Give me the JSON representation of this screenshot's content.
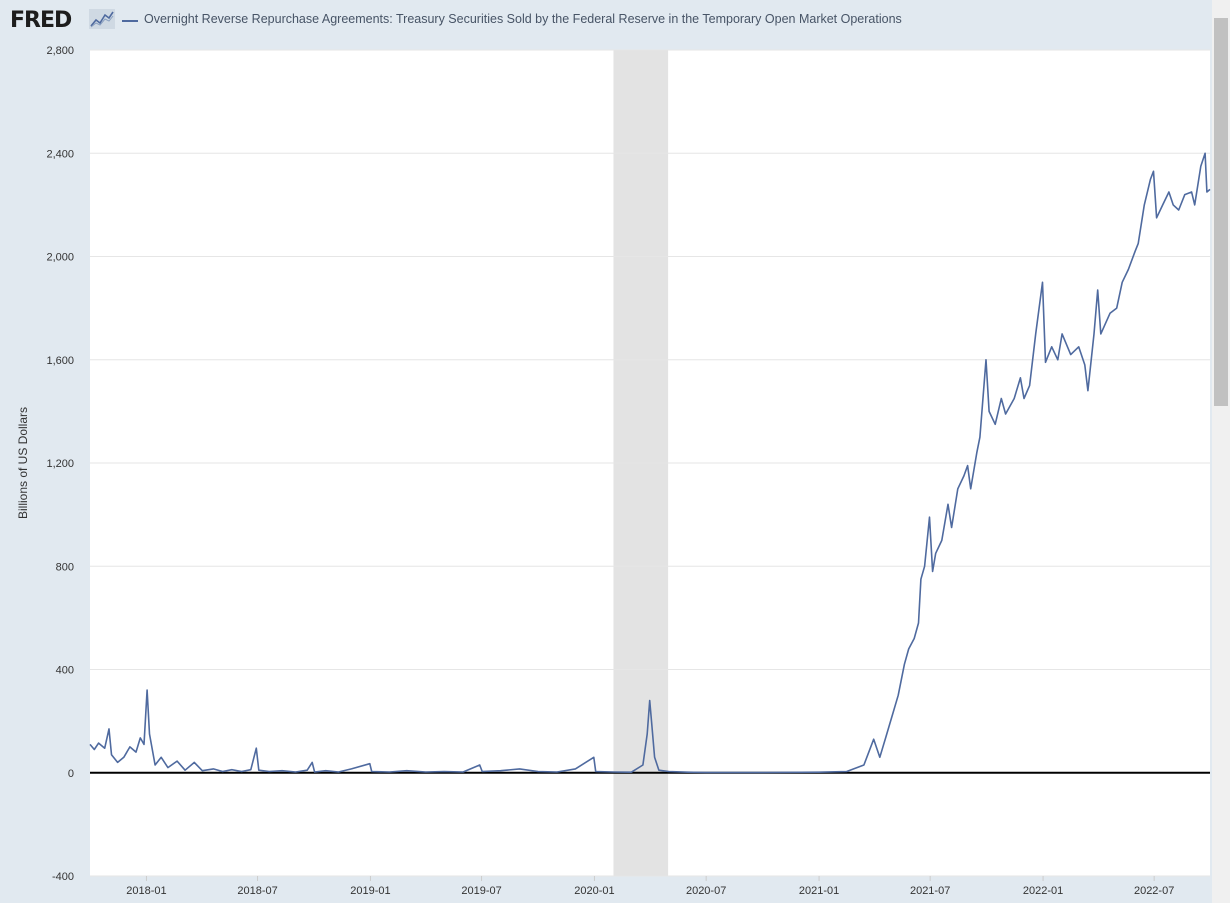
{
  "header": {
    "logo_text": "FRED",
    "series_title": "Overnight Reverse Repurchase Agreements: Treasury Securities Sold by the Federal Reserve in the Temporary Open Market Operations"
  },
  "colors": {
    "series": "#4f6a9f",
    "recession": "#e3e3e3",
    "background": "#e1e9f0",
    "plot": "#ffffff",
    "zero_line": "#000000"
  },
  "chart_data": {
    "type": "line",
    "title": "Overnight Reverse Repurchase Agreements: Treasury Securities Sold by the Federal Reserve in the Temporary Open Market Operations",
    "xlabel": "",
    "ylabel": "Billions of US Dollars",
    "ylim": [
      -400,
      2800
    ],
    "xlim": [
      "2017-10-01",
      "2022-09-30"
    ],
    "yticks": [
      -400,
      0,
      400,
      800,
      1200,
      1600,
      2000,
      2400,
      2800
    ],
    "ytick_labels": [
      "-400",
      "0",
      "400",
      "800",
      "1,200",
      "1,600",
      "2,000",
      "2,400",
      "2,800"
    ],
    "xticks": [
      "2018-01",
      "2018-07",
      "2019-01",
      "2019-07",
      "2020-01",
      "2020-07",
      "2021-01",
      "2021-07",
      "2022-01",
      "2022-07"
    ],
    "grid": true,
    "recession_shading": [
      {
        "start": "2020-02-01",
        "end": "2020-04-30"
      }
    ],
    "series": [
      {
        "name": "Overnight Reverse Repurchase Agreements: Treasury Securities Sold by the Federal Reserve in the Temporary Open Market Operations",
        "points": [
          [
            "2017-10-01",
            110
          ],
          [
            "2017-10-08",
            90
          ],
          [
            "2017-10-15",
            115
          ],
          [
            "2017-10-25",
            95
          ],
          [
            "2017-11-01",
            170
          ],
          [
            "2017-11-05",
            70
          ],
          [
            "2017-11-15",
            40
          ],
          [
            "2017-11-25",
            60
          ],
          [
            "2017-12-05",
            100
          ],
          [
            "2017-12-15",
            80
          ],
          [
            "2017-12-22",
            135
          ],
          [
            "2017-12-28",
            110
          ],
          [
            "2018-01-02",
            320
          ],
          [
            "2018-01-06",
            150
          ],
          [
            "2018-01-15",
            30
          ],
          [
            "2018-01-25",
            60
          ],
          [
            "2018-02-05",
            20
          ],
          [
            "2018-02-20",
            45
          ],
          [
            "2018-03-05",
            10
          ],
          [
            "2018-03-20",
            40
          ],
          [
            "2018-04-02",
            8
          ],
          [
            "2018-04-20",
            15
          ],
          [
            "2018-05-05",
            5
          ],
          [
            "2018-05-20",
            12
          ],
          [
            "2018-06-05",
            5
          ],
          [
            "2018-06-20",
            12
          ],
          [
            "2018-06-29",
            95
          ],
          [
            "2018-07-03",
            10
          ],
          [
            "2018-07-20",
            5
          ],
          [
            "2018-08-10",
            8
          ],
          [
            "2018-09-01",
            3
          ],
          [
            "2018-09-20",
            10
          ],
          [
            "2018-09-28",
            40
          ],
          [
            "2018-10-02",
            3
          ],
          [
            "2018-10-20",
            8
          ],
          [
            "2018-11-10",
            3
          ],
          [
            "2018-12-01",
            15
          ],
          [
            "2018-12-31",
            35
          ],
          [
            "2019-01-03",
            5
          ],
          [
            "2019-02-01",
            3
          ],
          [
            "2019-03-01",
            8
          ],
          [
            "2019-04-01",
            3
          ],
          [
            "2019-05-01",
            5
          ],
          [
            "2019-06-01",
            3
          ],
          [
            "2019-06-28",
            30
          ],
          [
            "2019-07-02",
            5
          ],
          [
            "2019-08-01",
            8
          ],
          [
            "2019-09-01",
            15
          ],
          [
            "2019-10-01",
            5
          ],
          [
            "2019-11-01",
            3
          ],
          [
            "2019-12-01",
            15
          ],
          [
            "2019-12-31",
            60
          ],
          [
            "2020-01-03",
            5
          ],
          [
            "2020-02-01",
            3
          ],
          [
            "2020-03-01",
            2
          ],
          [
            "2020-03-20",
            30
          ],
          [
            "2020-03-27",
            150
          ],
          [
            "2020-03-31",
            280
          ],
          [
            "2020-04-03",
            200
          ],
          [
            "2020-04-08",
            60
          ],
          [
            "2020-04-15",
            10
          ],
          [
            "2020-05-01",
            5
          ],
          [
            "2020-06-01",
            2
          ],
          [
            "2020-07-01",
            1
          ],
          [
            "2020-10-01",
            1
          ],
          [
            "2021-01-01",
            2
          ],
          [
            "2021-02-15",
            5
          ],
          [
            "2021-03-15",
            30
          ],
          [
            "2021-03-31",
            130
          ],
          [
            "2021-04-10",
            60
          ],
          [
            "2021-04-20",
            140
          ],
          [
            "2021-04-30",
            220
          ],
          [
            "2021-05-10",
            300
          ],
          [
            "2021-05-20",
            420
          ],
          [
            "2021-05-27",
            480
          ],
          [
            "2021-06-05",
            520
          ],
          [
            "2021-06-12",
            580
          ],
          [
            "2021-06-16",
            750
          ],
          [
            "2021-06-22",
            800
          ],
          [
            "2021-06-30",
            990
          ],
          [
            "2021-07-05",
            780
          ],
          [
            "2021-07-10",
            850
          ],
          [
            "2021-07-20",
            900
          ],
          [
            "2021-07-30",
            1040
          ],
          [
            "2021-08-05",
            950
          ],
          [
            "2021-08-15",
            1100
          ],
          [
            "2021-08-25",
            1150
          ],
          [
            "2021-08-31",
            1190
          ],
          [
            "2021-09-05",
            1100
          ],
          [
            "2021-09-15",
            1240
          ],
          [
            "2021-09-20",
            1300
          ],
          [
            "2021-09-30",
            1600
          ],
          [
            "2021-10-05",
            1400
          ],
          [
            "2021-10-15",
            1350
          ],
          [
            "2021-10-25",
            1450
          ],
          [
            "2021-11-01",
            1390
          ],
          [
            "2021-11-15",
            1450
          ],
          [
            "2021-11-25",
            1530
          ],
          [
            "2021-12-01",
            1450
          ],
          [
            "2021-12-10",
            1500
          ],
          [
            "2021-12-20",
            1700
          ],
          [
            "2021-12-31",
            1900
          ],
          [
            "2022-01-05",
            1590
          ],
          [
            "2022-01-15",
            1650
          ],
          [
            "2022-01-25",
            1600
          ],
          [
            "2022-02-01",
            1700
          ],
          [
            "2022-02-15",
            1620
          ],
          [
            "2022-02-28",
            1650
          ],
          [
            "2022-03-10",
            1580
          ],
          [
            "2022-03-15",
            1480
          ],
          [
            "2022-03-25",
            1700
          ],
          [
            "2022-03-31",
            1870
          ],
          [
            "2022-04-05",
            1700
          ],
          [
            "2022-04-20",
            1780
          ],
          [
            "2022-05-01",
            1800
          ],
          [
            "2022-05-10",
            1900
          ],
          [
            "2022-05-20",
            1950
          ],
          [
            "2022-05-31",
            2020
          ],
          [
            "2022-06-05",
            2050
          ],
          [
            "2022-06-15",
            2200
          ],
          [
            "2022-06-25",
            2300
          ],
          [
            "2022-06-30",
            2330
          ],
          [
            "2022-07-05",
            2150
          ],
          [
            "2022-07-15",
            2200
          ],
          [
            "2022-07-25",
            2250
          ],
          [
            "2022-08-01",
            2200
          ],
          [
            "2022-08-10",
            2180
          ],
          [
            "2022-08-20",
            2240
          ],
          [
            "2022-08-31",
            2250
          ],
          [
            "2022-09-05",
            2200
          ],
          [
            "2022-09-15",
            2350
          ],
          [
            "2022-09-22",
            2400
          ],
          [
            "2022-09-25",
            2250
          ],
          [
            "2022-09-30",
            2260
          ]
        ]
      }
    ]
  }
}
